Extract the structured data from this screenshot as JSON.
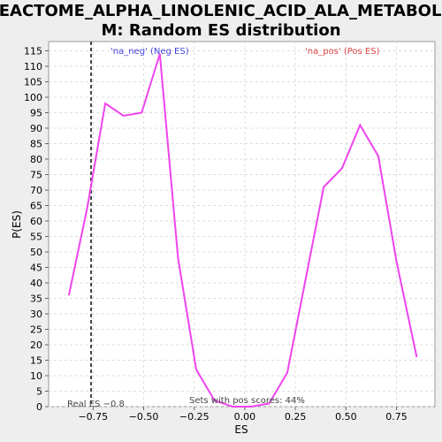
{
  "chart_data": {
    "type": "line",
    "title_line1": "REACTOME_ALPHA_LINOLENIC_ACID_ALA_METABOLIS",
    "title_line2": "M: Random ES distribution",
    "xlabel": "ES",
    "ylabel": "P(ES)",
    "xlim": [
      -0.97,
      0.94
    ],
    "ylim": [
      0,
      118
    ],
    "x_ticks": [
      -0.75,
      -0.5,
      -0.25,
      0.0,
      0.25,
      0.5,
      0.75
    ],
    "x_tick_labels": [
      "−0.75",
      "−0.50",
      "−0.25",
      "0.00",
      "0.25",
      "0.50",
      "0.75"
    ],
    "y_ticks": [
      0,
      5,
      10,
      15,
      20,
      25,
      30,
      35,
      40,
      45,
      50,
      55,
      60,
      65,
      70,
      75,
      80,
      85,
      90,
      95,
      100,
      105,
      110,
      115
    ],
    "grid": true,
    "series": [
      {
        "color": "#ee44ee",
        "x": [
          -0.87,
          -0.78,
          -0.69,
          -0.6,
          -0.51,
          -0.42,
          -0.33,
          -0.24,
          -0.15,
          -0.06,
          0.03,
          0.12,
          0.21,
          0.3,
          0.39,
          0.48,
          0.57,
          0.66,
          0.75,
          0.85
        ],
        "y": [
          36,
          64,
          98,
          94,
          95,
          114,
          48,
          12,
          2,
          0,
          0,
          1,
          11,
          41,
          71,
          77,
          91,
          81,
          47,
          16
        ]
      }
    ],
    "real_es": -0.76,
    "annotations": {
      "neg_label": "'na_neg' (Neg ES)",
      "pos_label": "'na_pos' (Pos ES)",
      "real_es_label": "Real ES −0.8",
      "pos_scores_label": "Sets with pos scores: 44%"
    },
    "colors": {
      "neg": "#4444dd",
      "pos": "#dd4444",
      "grid": "#dddddd",
      "plot_bg": "#ffffff"
    }
  }
}
